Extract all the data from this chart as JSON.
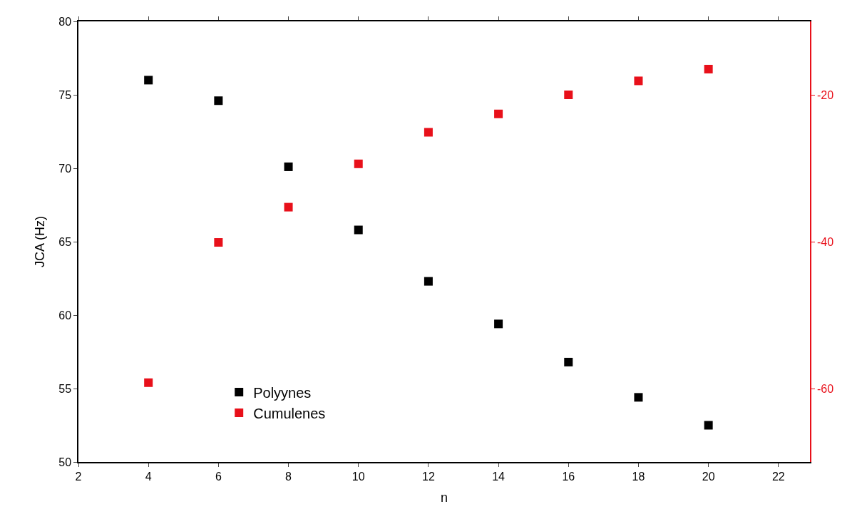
{
  "chart_data": {
    "type": "scatter",
    "xlabel": "n",
    "ylabel": "JCA (Hz)",
    "x": [
      4,
      6,
      8,
      10,
      12,
      14,
      16,
      18,
      20
    ],
    "series": [
      {
        "name": "Polyynes",
        "color": "#000000",
        "values": [
          76.0,
          74.6,
          70.1,
          65.8,
          62.3,
          59.4,
          56.8,
          54.4,
          52.5
        ]
      },
      {
        "name": "Cumulenes",
        "color": "#e8101a",
        "axis": "y2",
        "values": [
          -59.2,
          -40.1,
          -35.3,
          -29.4,
          -25.1,
          -22.6,
          -20.0,
          -18.1,
          -16.5
        ]
      }
    ],
    "xlim": [
      2,
      22.9
    ],
    "xticks": [
      2,
      4,
      6,
      8,
      10,
      12,
      14,
      16,
      18,
      20,
      22
    ],
    "ylim": [
      50,
      80
    ],
    "yticks": [
      50,
      55,
      60,
      65,
      70,
      75,
      80
    ],
    "y2lim": [
      -70,
      -10
    ],
    "y2ticks": [
      -20,
      -40,
      -60
    ],
    "marker": "square",
    "legend": "bottom left"
  }
}
